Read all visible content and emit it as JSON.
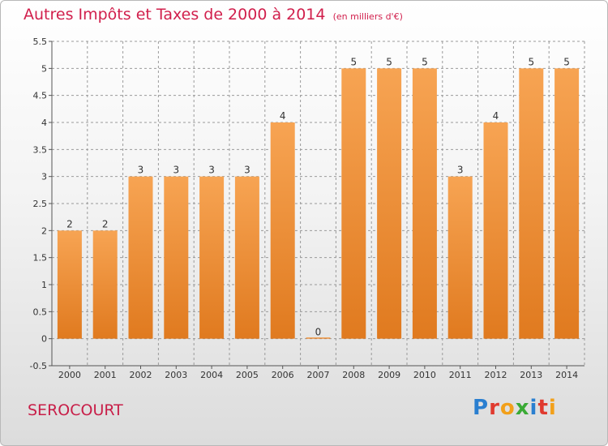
{
  "title": "Autres Impôts et Taxes de 2000 à 2014",
  "subtitle": "(en milliers d'€)",
  "commune": "SEROCOURT",
  "logo": {
    "letters": [
      "P",
      "r",
      "o",
      "x",
      "i",
      "t",
      "i"
    ],
    "colors": [
      "#2a7fd0",
      "#e03a2f",
      "#f2a01a",
      "#3aaa35",
      "#2a7fd0",
      "#e03a2f",
      "#f2a01a"
    ]
  },
  "colors": {
    "bar_top": "#f7a453",
    "bar_bottom": "#e07a1f",
    "axis": "#555555",
    "grid": "#9a9a9a"
  },
  "chart_data": {
    "type": "bar",
    "title": "Autres Impôts et Taxes de 2000 à 2014",
    "subtitle": "(en milliers d'€)",
    "categories": [
      "2000",
      "2001",
      "2002",
      "2003",
      "2004",
      "2005",
      "2006",
      "2007",
      "2008",
      "2009",
      "2010",
      "2011",
      "2012",
      "2013",
      "2014"
    ],
    "values": [
      2,
      2,
      3,
      3,
      3,
      3,
      4,
      0,
      5,
      5,
      5,
      3,
      4,
      5,
      5
    ],
    "ylim": [
      -0.5,
      5.5
    ],
    "yticks": [
      "-0.5",
      "0",
      "0.5",
      "1",
      "1.5",
      "2",
      "2.5",
      "3",
      "3.5",
      "4",
      "4.5",
      "5",
      "5.5"
    ],
    "grid": true,
    "legend": "none"
  }
}
